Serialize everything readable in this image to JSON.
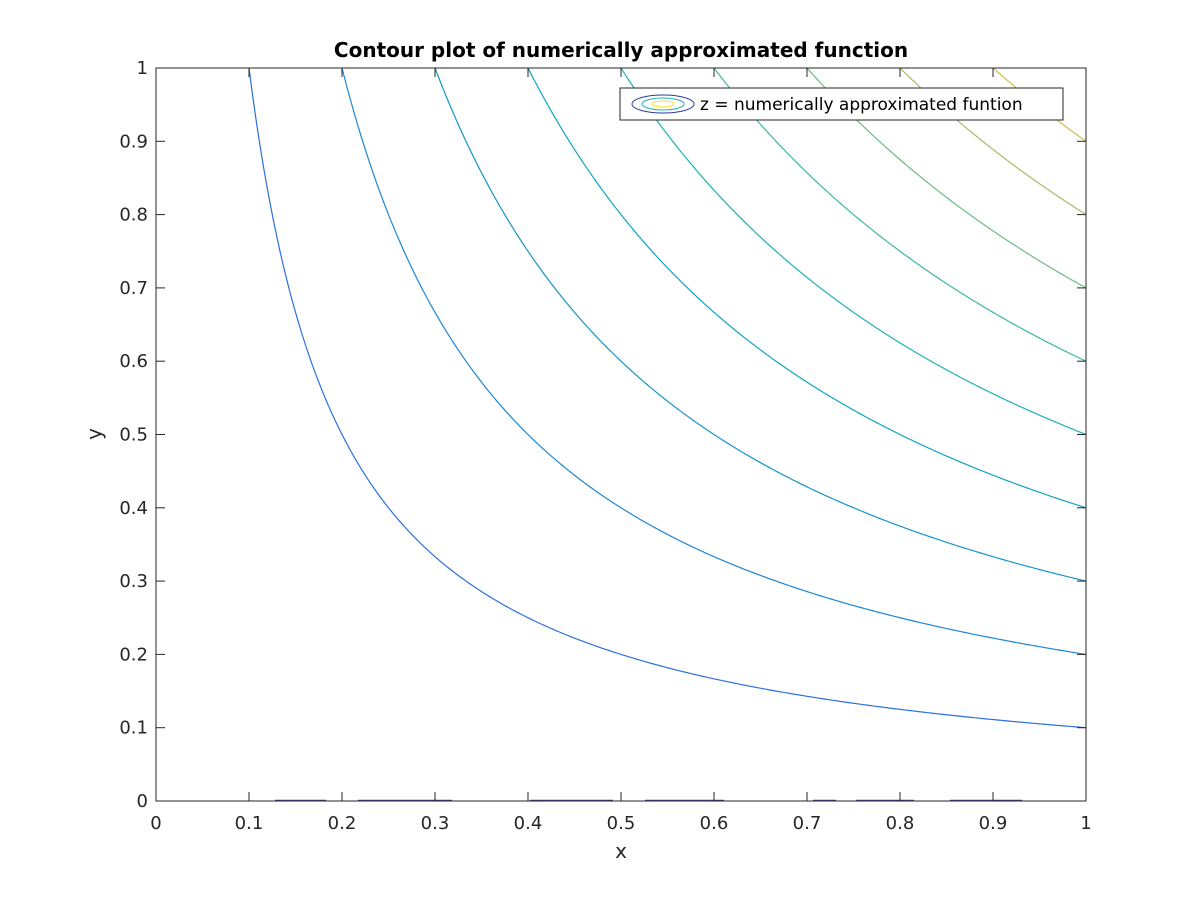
{
  "chart_data": {
    "type": "contour",
    "title": "Contour plot of numerically approximated function",
    "xlabel": "x",
    "ylabel": "y",
    "xlim": [
      0,
      1
    ],
    "ylim": [
      0,
      1
    ],
    "xticks": [
      "0",
      "0.1",
      "0.2",
      "0.3",
      "0.4",
      "0.5",
      "0.6",
      "0.7",
      "0.8",
      "0.9",
      "1"
    ],
    "yticks": [
      "0",
      "0.1",
      "0.2",
      "0.3",
      "0.4",
      "0.5",
      "0.6",
      "0.7",
      "0.8",
      "0.9",
      "1"
    ],
    "grid": false,
    "box": true,
    "legend": {
      "position": "top-right",
      "entries": [
        "z = numerically approximated funtion"
      ]
    },
    "levels": [
      {
        "value": 0.1,
        "color": "#2d6fe0"
      },
      {
        "value": 0.2,
        "color": "#1d86d6"
      },
      {
        "value": 0.3,
        "color": "#1495c8"
      },
      {
        "value": 0.4,
        "color": "#0ea5c3"
      },
      {
        "value": 0.5,
        "color": "#1eb2b8"
      },
      {
        "value": 0.6,
        "color": "#3cb8a3"
      },
      {
        "value": 0.7,
        "color": "#6abc86"
      },
      {
        "value": 0.8,
        "color": "#a3bd69"
      },
      {
        "value": 0.9,
        "color": "#d6b84a"
      },
      {
        "value": 1.0,
        "color": "#f7c52a"
      }
    ]
  }
}
